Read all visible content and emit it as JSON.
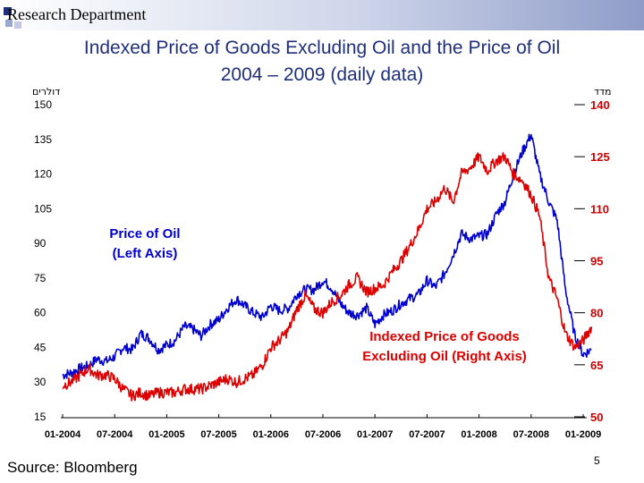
{
  "header": {
    "department": "Research Department"
  },
  "slide": {
    "title_line1": "Indexed Price of Goods Excluding Oil and the Price of Oil",
    "title_line2": "2004 – 2009 (daily data)",
    "source": "Source: Bloomberg",
    "page_number": "5"
  },
  "chart_data": {
    "type": "line",
    "title": "Indexed Price of Goods Excluding Oil and the Price of Oil 2004 – 2009 (daily data)",
    "left_unit_label": "דולרים",
    "right_unit_label": "מדד",
    "x_tick_labels": [
      "01-2004",
      "07-2004",
      "01-2005",
      "07-2005",
      "01-2006",
      "07-2006",
      "01-2007",
      "07-2007",
      "01-2008",
      "07-2008",
      "01-2009"
    ],
    "left_axis": {
      "ticks": [
        "150",
        "135",
        "120",
        "105",
        "90",
        "75",
        "60",
        "45",
        "30",
        "15"
      ],
      "range": [
        15,
        150
      ]
    },
    "right_axis": {
      "ticks": [
        "140",
        "125",
        "110",
        "95",
        "80",
        "65",
        "50"
      ],
      "range": [
        50,
        140
      ]
    },
    "grid": false,
    "colors": {
      "oil": "#0000cc",
      "goods": "#dd0000",
      "right_axis_text": "#cc0000"
    },
    "annotations": [
      {
        "id": "oil",
        "lines": [
          "Price of Oil",
          "(Left Axis)"
        ]
      },
      {
        "id": "goods",
        "lines": [
          "Indexed Price of Goods",
          "Excluding Oil (Right Axis)"
        ]
      }
    ],
    "series": [
      {
        "name": "Price of Oil",
        "axis": "left",
        "x": [
          2004.0,
          2004.08,
          2004.17,
          2004.25,
          2004.33,
          2004.42,
          2004.5,
          2004.58,
          2004.67,
          2004.75,
          2004.83,
          2004.92,
          2005.0,
          2005.08,
          2005.17,
          2005.25,
          2005.33,
          2005.42,
          2005.5,
          2005.58,
          2005.67,
          2005.75,
          2005.83,
          2005.92,
          2006.0,
          2006.08,
          2006.17,
          2006.25,
          2006.33,
          2006.42,
          2006.5,
          2006.58,
          2006.67,
          2006.75,
          2006.83,
          2006.92,
          2007.0,
          2007.08,
          2007.17,
          2007.25,
          2007.33,
          2007.42,
          2007.5,
          2007.58,
          2007.67,
          2007.75,
          2007.83,
          2007.92,
          2008.0,
          2008.08,
          2008.17,
          2008.25,
          2008.33,
          2008.42,
          2008.5,
          2008.58,
          2008.67,
          2008.75,
          2008.83,
          2008.92,
          2009.0,
          2009.08
        ],
        "y": [
          33,
          34,
          36,
          37,
          40,
          39,
          41,
          45,
          44,
          51,
          49,
          44,
          46,
          48,
          54,
          53,
          50,
          55,
          57,
          62,
          66,
          63,
          60,
          58,
          63,
          61,
          62,
          68,
          70,
          70,
          74,
          71,
          64,
          60,
          59,
          62,
          55,
          59,
          61,
          64,
          66,
          68,
          74,
          71,
          77,
          85,
          94,
          92,
          93,
          94,
          103,
          108,
          120,
          130,
          137,
          120,
          108,
          100,
          70,
          50,
          42,
          44
        ]
      },
      {
        "name": "Indexed Price of Goods Excluding Oil",
        "axis": "right",
        "x": [
          2004.0,
          2004.08,
          2004.17,
          2004.25,
          2004.33,
          2004.42,
          2004.5,
          2004.58,
          2004.67,
          2004.75,
          2004.83,
          2004.92,
          2005.0,
          2005.08,
          2005.17,
          2005.25,
          2005.33,
          2005.42,
          2005.5,
          2005.58,
          2005.67,
          2005.75,
          2005.83,
          2005.92,
          2006.0,
          2006.08,
          2006.17,
          2006.25,
          2006.33,
          2006.42,
          2006.5,
          2006.58,
          2006.67,
          2006.75,
          2006.83,
          2006.92,
          2007.0,
          2007.08,
          2007.17,
          2007.25,
          2007.33,
          2007.42,
          2007.5,
          2007.58,
          2007.67,
          2007.75,
          2007.83,
          2007.92,
          2008.0,
          2008.08,
          2008.17,
          2008.25,
          2008.33,
          2008.42,
          2008.5,
          2008.58,
          2008.67,
          2008.75,
          2008.83,
          2008.92,
          2009.0,
          2009.08
        ],
        "y": [
          59,
          60,
          62,
          64,
          62,
          62,
          61,
          58,
          56,
          57,
          56,
          57,
          57,
          57,
          58,
          58,
          58,
          59,
          60,
          61,
          60,
          61,
          62,
          65,
          70,
          72,
          75,
          81,
          85,
          81,
          80,
          83,
          85,
          88,
          90,
          86,
          87,
          88,
          92,
          95,
          99,
          104,
          110,
          112,
          116,
          112,
          120,
          122,
          125,
          121,
          124,
          125,
          120,
          118,
          114,
          108,
          90,
          84,
          74,
          70,
          72,
          76
        ]
      }
    ]
  }
}
